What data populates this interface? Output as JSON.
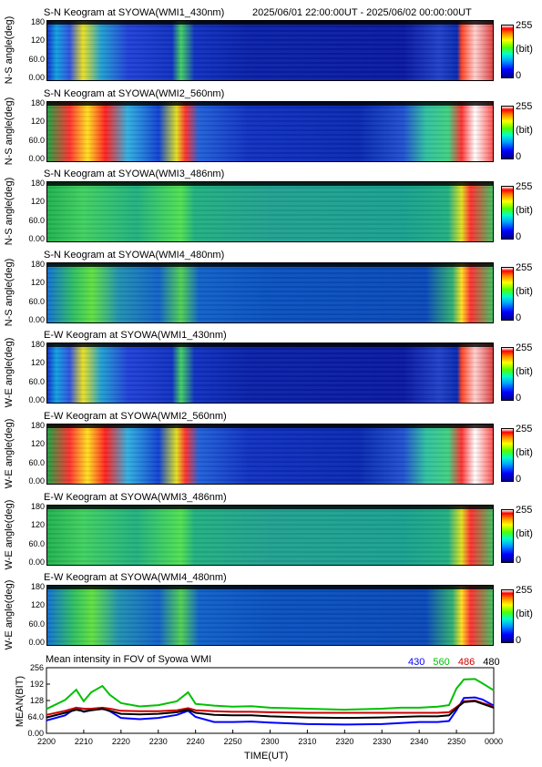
{
  "header": {
    "time_range": "2025/06/01 22:00:00UT - 2025/06/02 00:00:00UT"
  },
  "keogram_panels": [
    {
      "title": "S-N Keogram at SYOWA(WMI1_430nm)",
      "ylabel": "N-S angle(deg)",
      "style": "b430"
    },
    {
      "title": "S-N Keogram at SYOWA(WMI2_560nm)",
      "ylabel": "N-S angle(deg)",
      "style": "b560"
    },
    {
      "title": "S-N Keogram at SYOWA(WMI3_486nm)",
      "ylabel": "N-S angle(deg)",
      "style": "b486"
    },
    {
      "title": "S-N Keogram at SYOWA(WMI4_480nm)",
      "ylabel": "N-S angle(deg)",
      "style": "b480"
    },
    {
      "title": "E-W Keogram at SYOWA(WMI1_430nm)",
      "ylabel": "W-E angle(deg)",
      "style": "b430"
    },
    {
      "title": "E-W Keogram at SYOWA(WMI2_560nm)",
      "ylabel": "W-E angle(deg)",
      "style": "b560"
    },
    {
      "title": "E-W Keogram at SYOWA(WMI3_486nm)",
      "ylabel": "W-E angle(deg)",
      "style": "b486"
    },
    {
      "title": "E-W Keogram at SYOWA(WMI4_480nm)",
      "ylabel": "W-E angle(deg)",
      "style": "b480"
    }
  ],
  "keogram_yticks": [
    "180",
    "120",
    "60.0",
    "0.00"
  ],
  "colorbar": {
    "max_label": "255",
    "unit_label": "(bit)",
    "min_label": "0"
  },
  "chart_data": {
    "type": "line",
    "title": "Mean intensity in FOV of Syowa WMI",
    "xlabel": "TIME(UT)",
    "ylabel": "MEAN(BIT)",
    "x_tick_labels": [
      "2200",
      "2210",
      "2220",
      "2230",
      "2240",
      "2250",
      "2300",
      "2310",
      "2320",
      "2330",
      "2340",
      "2350",
      "0000"
    ],
    "y_tick_labels": [
      "256",
      "192",
      "128",
      "64.0",
      "0.00"
    ],
    "y_tick_values": [
      256,
      192,
      128,
      64,
      0
    ],
    "ylim": [
      0,
      256
    ],
    "x_minutes_range": [
      0,
      120
    ],
    "x": [
      0,
      5,
      8,
      10,
      12,
      15,
      17,
      20,
      25,
      30,
      35,
      38,
      40,
      45,
      50,
      55,
      60,
      70,
      80,
      90,
      95,
      100,
      105,
      108,
      110,
      112,
      115,
      117,
      120
    ],
    "series": [
      {
        "name": "430",
        "color": "#0000ff",
        "values": [
          50,
          70,
          100,
          84,
          90,
          98,
          86,
          60,
          55,
          60,
          72,
          88,
          64,
          44,
          44,
          46,
          42,
          36,
          34,
          36,
          40,
          44,
          44,
          48,
          90,
          138,
          140,
          132,
          108
        ]
      },
      {
        "name": "560",
        "color": "#00c000",
        "values": [
          95,
          130,
          170,
          125,
          160,
          185,
          150,
          118,
          105,
          110,
          125,
          160,
          115,
          108,
          104,
          106,
          100,
          96,
          92,
          96,
          100,
          100,
          104,
          110,
          175,
          210,
          212,
          195,
          168
        ]
      },
      {
        "name": "486",
        "color": "#cc0000",
        "values": [
          72,
          88,
          100,
          96,
          96,
          100,
          96,
          88,
          86,
          86,
          90,
          98,
          90,
          86,
          84,
          84,
          82,
          80,
          80,
          80,
          80,
          80,
          80,
          82,
          102,
          125,
          128,
          118,
          105
        ]
      },
      {
        "name": "480",
        "color": "#000000",
        "values": [
          62,
          80,
          92,
          86,
          90,
          95,
          88,
          76,
          74,
          76,
          82,
          92,
          80,
          72,
          70,
          70,
          66,
          62,
          60,
          62,
          64,
          66,
          66,
          70,
          98,
          122,
          125,
          115,
          100
        ]
      }
    ]
  }
}
